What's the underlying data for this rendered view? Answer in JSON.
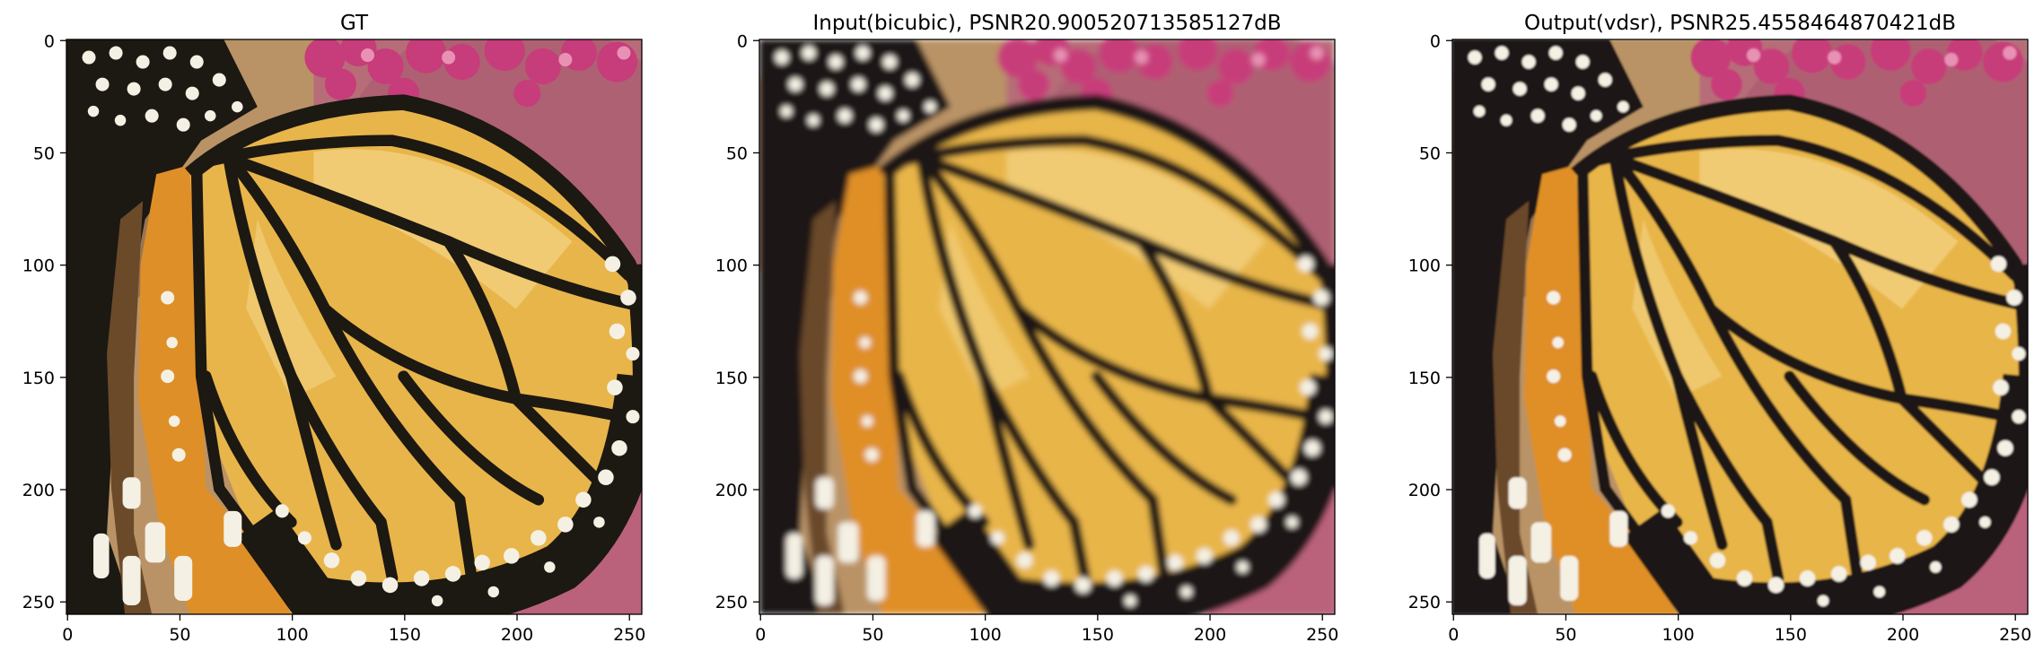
{
  "chart_data": [
    {
      "type": "image",
      "title": "GT",
      "image_description": "sharp close-up of a monarch butterfly wing, orange-yellow cells separated by black veins, white spots along black border, pink flowers top-right",
      "xlim": [
        0,
        255
      ],
      "ylim": [
        255,
        0
      ],
      "xticks": [
        0,
        50,
        100,
        150,
        200,
        250
      ],
      "yticks": [
        0,
        50,
        100,
        150,
        200,
        250
      ],
      "blur": 0
    },
    {
      "type": "image",
      "title": "Input(bicubic), PSNR20.900520713585127dB",
      "image_description": "same butterfly wing, blurry bicubic upscale",
      "xlim": [
        0,
        255
      ],
      "ylim": [
        255,
        0
      ],
      "xticks": [
        0,
        50,
        100,
        150,
        200,
        250
      ],
      "yticks": [
        0,
        50,
        100,
        150,
        200,
        250
      ],
      "blur": 3.2
    },
    {
      "type": "image",
      "title": "Output(vdsr), PSNR25.4558464870421dB",
      "image_description": "same butterfly wing, super-resolved by VDSR, mostly sharp",
      "xlim": [
        0,
        255
      ],
      "ylim": [
        255,
        0
      ],
      "xticks": [
        0,
        50,
        100,
        150,
        200,
        250
      ],
      "yticks": [
        0,
        50,
        100,
        150,
        200,
        250
      ],
      "blur": 1.1
    }
  ],
  "colors": {
    "wing_fill": "#e8b54a",
    "wing_light": "#f2cf7a",
    "orange_strip": "#df8f28",
    "vein": "#1c1812",
    "spot": "#f4f0e4",
    "background_tan": "#b99366",
    "background_pink": "#b5667b",
    "flower": "#c73c7a",
    "flower_light": "#e891b4"
  }
}
